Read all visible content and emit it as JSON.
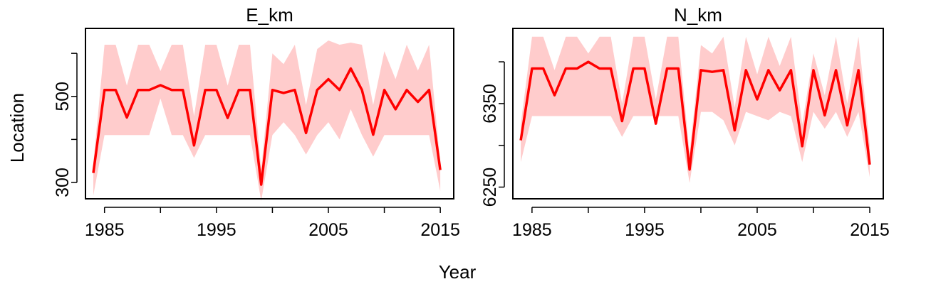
{
  "figure": {
    "xlabel": "Year",
    "ylabel": "Location"
  },
  "chart_data": [
    {
      "type": "line",
      "title": "E_km",
      "xlabel": "Year",
      "ylabel": "Location",
      "xlim": [
        1983.3,
        2016.2
      ],
      "ylim": [
        262,
        658
      ],
      "xticks": [
        1985,
        1990,
        1995,
        2000,
        2005,
        2010,
        2015
      ],
      "xtick_labels": [
        "1985",
        "",
        "1995",
        "",
        "2005",
        "",
        "2015"
      ],
      "yticks": [
        300,
        400,
        500,
        600
      ],
      "ytick_labels": [
        "300",
        "",
        "500",
        ""
      ],
      "line_color": "#ff0000",
      "band_color": "#ffcccc",
      "x": [
        1984,
        1985,
        1986,
        1987,
        1988,
        1989,
        1990,
        1991,
        1992,
        1993,
        1994,
        1995,
        1996,
        1997,
        1998,
        1999,
        2000,
        2001,
        2002,
        2003,
        2004,
        2005,
        2006,
        2007,
        2008,
        2009,
        2010,
        2011,
        2012,
        2013,
        2014,
        2015
      ],
      "series": [
        {
          "values": [
            322,
            515,
            515,
            451,
            515,
            515,
            526,
            515,
            515,
            386,
            515,
            515,
            450,
            515,
            515,
            295,
            515,
            508,
            515,
            415,
            515,
            540,
            515,
            565,
            515,
            411,
            515,
            470,
            515,
            487,
            515,
            329
          ],
          "lower": [
            270,
            410,
            410,
            410,
            410,
            410,
            495,
            410,
            410,
            357,
            410,
            410,
            410,
            410,
            410,
            257,
            410,
            440,
            410,
            365,
            410,
            440,
            400,
            470,
            410,
            360,
            410,
            410,
            410,
            410,
            410,
            280
          ],
          "upper": [
            343,
            620,
            620,
            525,
            620,
            620,
            559,
            620,
            620,
            454,
            620,
            620,
            525,
            620,
            620,
            330,
            600,
            575,
            620,
            480,
            610,
            630,
            620,
            625,
            620,
            480,
            605,
            540,
            620,
            560,
            620,
            345
          ]
        }
      ]
    },
    {
      "type": "line",
      "title": "N_km",
      "xlabel": "Year",
      "ylabel": "Location",
      "xlim": [
        1983.3,
        2016.2
      ],
      "ylim": [
        6236,
        6440
      ],
      "xticks": [
        1985,
        1990,
        1995,
        2000,
        2005,
        2010,
        2015
      ],
      "xtick_labels": [
        "1985",
        "",
        "1995",
        "",
        "2005",
        "",
        "2015"
      ],
      "yticks": [
        6250,
        6300,
        6350,
        6400
      ],
      "ytick_labels": [
        "6250",
        "",
        "6350",
        ""
      ],
      "line_color": "#ff0000",
      "band_color": "#ffcccc",
      "x": [
        1984,
        1985,
        1986,
        1987,
        1988,
        1989,
        1990,
        1991,
        1992,
        1993,
        1994,
        1995,
        1996,
        1997,
        1998,
        1999,
        2000,
        2001,
        2002,
        2003,
        2004,
        2005,
        2006,
        2007,
        2008,
        2009,
        2010,
        2011,
        2012,
        2013,
        2014,
        2015
      ],
      "series": [
        {
          "values": [
            6306,
            6392,
            6392,
            6360,
            6392,
            6392,
            6400,
            6392,
            6392,
            6329,
            6392,
            6392,
            6326,
            6392,
            6392,
            6271,
            6390,
            6388,
            6390,
            6318,
            6390,
            6355,
            6390,
            6366,
            6390,
            6299,
            6390,
            6336,
            6390,
            6324,
            6390,
            6277
          ],
          "lower": [
            6280,
            6335,
            6335,
            6335,
            6335,
            6335,
            6335,
            6335,
            6335,
            6310,
            6335,
            6335,
            6335,
            6335,
            6335,
            6255,
            6340,
            6340,
            6330,
            6300,
            6340,
            6335,
            6330,
            6340,
            6335,
            6280,
            6340,
            6320,
            6340,
            6310,
            6340,
            6262
          ],
          "upper": [
            6325,
            6430,
            6430,
            6390,
            6430,
            6430,
            6410,
            6430,
            6430,
            6350,
            6430,
            6430,
            6355,
            6430,
            6430,
            6290,
            6420,
            6410,
            6430,
            6345,
            6430,
            6385,
            6430,
            6395,
            6430,
            6325,
            6410,
            6360,
            6430,
            6350,
            6430,
            6300
          ]
        }
      ]
    }
  ]
}
